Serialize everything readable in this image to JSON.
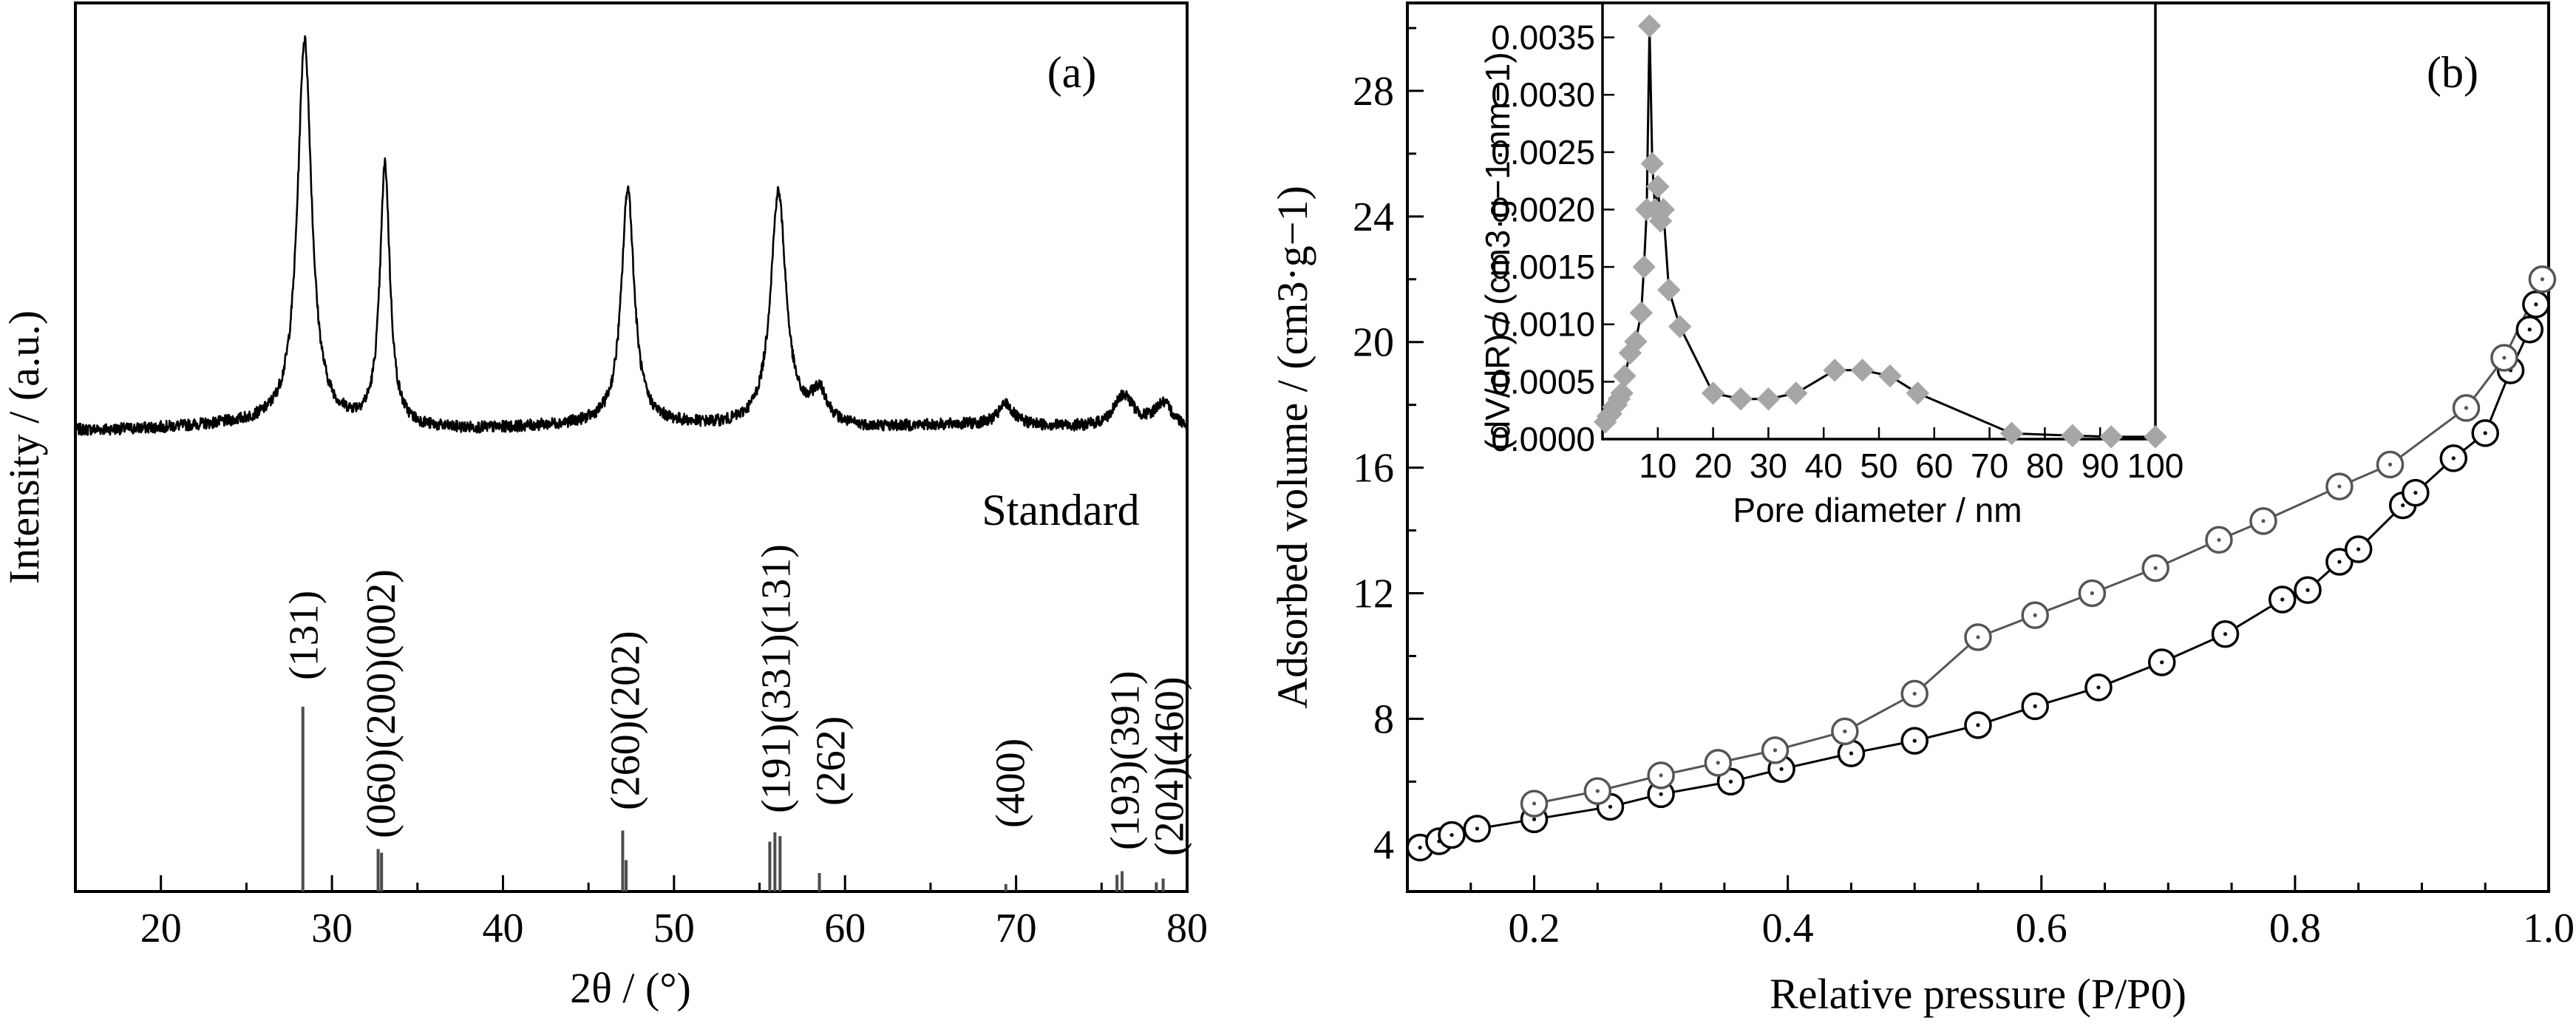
{
  "chart_data": [
    {
      "panel_label": "(a)",
      "type": "line",
      "xlabel": "2θ / (°)",
      "ylabel": "Intensity / (a.u.)",
      "xlim": [
        15,
        80
      ],
      "xticks": [
        20,
        30,
        40,
        50,
        60,
        70,
        80
      ],
      "y_ticks_shown": false,
      "pattern_peaks": [
        {
          "two_theta": 28.4,
          "height": 0.93,
          "width": 0.5
        },
        {
          "two_theta": 33.1,
          "height": 0.63,
          "width": 0.35
        },
        {
          "two_theta": 47.3,
          "height": 0.57,
          "width": 0.45
        },
        {
          "two_theta": 56.1,
          "height": 0.57,
          "width": 0.55
        },
        {
          "two_theta": 58.5,
          "height": 0.08,
          "width": 0.6
        },
        {
          "two_theta": 69.4,
          "height": 0.05,
          "width": 0.5
        },
        {
          "two_theta": 76.3,
          "height": 0.08,
          "width": 0.7
        },
        {
          "two_theta": 78.6,
          "height": 0.06,
          "width": 0.7
        }
      ],
      "standard": {
        "label": "Standard",
        "lines": [
          {
            "two_theta": 28.3,
            "intensity": 100
          },
          {
            "two_theta": 32.7,
            "intensity": 23
          },
          {
            "two_theta": 32.9,
            "intensity": 21
          },
          {
            "two_theta": 47.0,
            "intensity": 33
          },
          {
            "two_theta": 47.2,
            "intensity": 17
          },
          {
            "two_theta": 55.6,
            "intensity": 27
          },
          {
            "two_theta": 55.9,
            "intensity": 32
          },
          {
            "two_theta": 56.2,
            "intensity": 30
          },
          {
            "two_theta": 58.5,
            "intensity": 10
          },
          {
            "two_theta": 69.4,
            "intensity": 4
          },
          {
            "two_theta": 75.9,
            "intensity": 9
          },
          {
            "two_theta": 76.2,
            "intensity": 11
          },
          {
            "two_theta": 78.2,
            "intensity": 5
          },
          {
            "two_theta": 78.6,
            "intensity": 7
          }
        ],
        "annotations": [
          {
            "two_theta": 28.3,
            "text": "(131)"
          },
          {
            "two_theta": 32.8,
            "text": "(060)(200)(002)"
          },
          {
            "two_theta": 47.1,
            "text": "(260)(202)"
          },
          {
            "two_theta": 55.9,
            "text": "(191)(331)(131)"
          },
          {
            "two_theta": 59.1,
            "text": "(262)"
          },
          {
            "two_theta": 69.6,
            "text": "(400)"
          },
          {
            "two_theta": 76.3,
            "text": "(193)(391)"
          },
          {
            "two_theta": 78.9,
            "text": "(204)(460)"
          }
        ]
      }
    },
    {
      "panel_label": "(b)",
      "type": "line",
      "xlabel": "Relative pressure (P/P0)",
      "ylabel": "Adsorbed volume / (cm3·g−1)",
      "xlim": [
        0.1,
        1.0
      ],
      "ylim": [
        2.5,
        30.8
      ],
      "xticks": [
        0.2,
        0.4,
        0.6,
        0.8,
        1.0
      ],
      "xtick_labels": [
        "0.2",
        "0.4",
        "0.6",
        "0.8",
        "1.0"
      ],
      "yticks": [
        4,
        8,
        12,
        16,
        20,
        24,
        28
      ],
      "series": [
        {
          "color": "#000000",
          "x": [
            0.11,
            0.125,
            0.135,
            0.155,
            0.2,
            0.26,
            0.3,
            0.355,
            0.395,
            0.45,
            0.5,
            0.55,
            0.595,
            0.645,
            0.695,
            0.745,
            0.79,
            0.81,
            0.835,
            0.85,
            0.885,
            0.895,
            0.925,
            0.95,
            0.97,
            0.985,
            0.99
          ],
          "y": [
            3.9,
            4.1,
            4.3,
            4.5,
            4.8,
            5.2,
            5.6,
            6.0,
            6.4,
            6.9,
            7.3,
            7.8,
            8.4,
            9.0,
            9.8,
            10.7,
            11.8,
            12.1,
            13.0,
            13.4,
            14.8,
            15.2,
            16.3,
            17.1,
            19.1,
            20.4,
            21.2
          ]
        },
        {
          "color": "#555555",
          "x": [
            0.2,
            0.25,
            0.3,
            0.345,
            0.39,
            0.445,
            0.5,
            0.55,
            0.595,
            0.64,
            0.69,
            0.74,
            0.775,
            0.835,
            0.875,
            0.935,
            0.965,
            0.995
          ],
          "y": [
            5.3,
            5.7,
            6.2,
            6.6,
            7.0,
            7.6,
            8.8,
            10.6,
            11.3,
            12.0,
            12.8,
            13.7,
            14.3,
            15.4,
            16.1,
            17.9,
            19.5,
            22.0
          ]
        }
      ],
      "inset": {
        "type": "line",
        "xlabel": "Pore diameter / nm",
        "ylabel": "(dV/dR) / (cm3·g−1·nm−1)",
        "xlim": [
          0,
          100
        ],
        "ylim": [
          0,
          0.0038
        ],
        "xticks": [
          10,
          20,
          30,
          40,
          50,
          60,
          70,
          80,
          90,
          100
        ],
        "yticks": [
          0.0,
          0.0005,
          0.001,
          0.0015,
          0.002,
          0.0025,
          0.003,
          0.0035
        ],
        "ytick_labels": [
          "0.0000",
          "0.0005",
          "0.0010",
          "0.0015",
          "0.0020",
          "0.0025",
          "0.0030",
          "0.0035"
        ],
        "series": [
          {
            "color": "#a6a6a6",
            "x": [
              0.5,
              1.0,
              1.5,
              2.0,
              2.5,
              3.0,
              3.5,
              4.0,
              5.0,
              6.0,
              7.0,
              7.5,
              8.0,
              8.5,
              9.0,
              9.5,
              10.0,
              10.5,
              11.0,
              12.0,
              14.0,
              20.0,
              25.0,
              30.0,
              35.0,
              42.0,
              47.0,
              52.0,
              57.0,
              74.0,
              85.0,
              92.0,
              100.0
            ],
            "y": [
              0.00015,
              0.0002,
              0.00022,
              0.00028,
              0.0003,
              0.00035,
              0.0004,
              0.00055,
              0.00075,
              0.00085,
              0.0011,
              0.0015,
              0.002,
              0.0036,
              0.0024,
              0.002,
              0.0022,
              0.0019,
              0.002,
              0.0013,
              0.00098,
              0.0004,
              0.00035,
              0.00035,
              0.0004,
              0.0006,
              0.0006,
              0.00055,
              0.0004,
              5e-05,
              3e-05,
              2e-05,
              2e-05
            ]
          }
        ]
      }
    }
  ]
}
